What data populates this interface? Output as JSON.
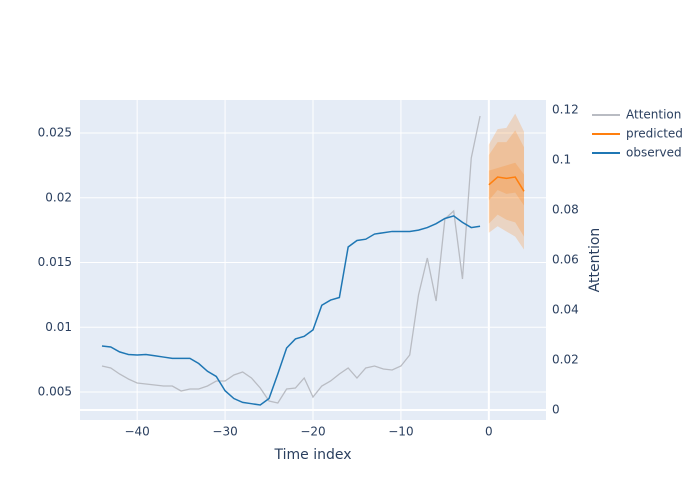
{
  "chart_data": {
    "type": "line",
    "x_label": "Time index",
    "y2_label": "Attention",
    "xlim": [
      -46.5,
      6.5
    ],
    "xticks": [
      {
        "value": -40,
        "label": "−40"
      },
      {
        "value": -30,
        "label": "−30"
      },
      {
        "value": -20,
        "label": "−20"
      },
      {
        "value": -10,
        "label": "−10"
      },
      0
    ],
    "ylim": [
      0.00284,
      0.02755
    ],
    "yticks": [
      0.005,
      0.01,
      0.015,
      0.02,
      0.025
    ],
    "y2lim": [
      -0.004,
      0.124
    ],
    "y2ticks": [
      0,
      0.02,
      0.04,
      0.06,
      0.08,
      0.1,
      0.12
    ],
    "grid": true,
    "zeroline": true,
    "legend": "outside-top-right",
    "series": [
      {
        "name": "Attention",
        "color": "#b9bcc3",
        "axis": "y2",
        "x": [
          -44,
          -43,
          -42,
          -41,
          -40,
          -39,
          -38,
          -37,
          -36,
          -35,
          -34,
          -33,
          -32,
          -31,
          -30,
          -29,
          -28,
          -27,
          -26,
          -25,
          -24,
          -23,
          -22,
          -21,
          -20,
          -19,
          -18,
          -17,
          -16,
          -15,
          -14,
          -13,
          -12,
          -11,
          -10,
          -9,
          -8,
          -7,
          -6,
          -5,
          -4,
          -3,
          -2,
          -1
        ],
        "values": [
          0.0176,
          0.0168,
          0.0144,
          0.0124,
          0.0108,
          0.0104,
          0.01,
          0.0096,
          0.0096,
          0.0076,
          0.0084,
          0.0084,
          0.0096,
          0.0116,
          0.0116,
          0.014,
          0.0152,
          0.0128,
          0.0088,
          0.0036,
          0.0028,
          0.0084,
          0.0088,
          0.0128,
          0.0052,
          0.0096,
          0.0116,
          0.0144,
          0.0168,
          0.0128,
          0.0168,
          0.0176,
          0.0164,
          0.016,
          0.0176,
          0.022,
          0.046,
          0.0608,
          0.0436,
          0.0764,
          0.0796,
          0.0524,
          0.1008,
          0.1176
        ]
      },
      {
        "name": "predicted",
        "color": "#ff7f0e",
        "x": [
          0,
          1,
          2,
          3,
          4
        ],
        "values": [
          0.021,
          0.0216,
          0.0215,
          0.0216,
          0.0205
        ],
        "intervals": [
          {
            "lower": [
              0.0173,
              0.0178,
              0.0174,
              0.017,
              0.016
            ],
            "upper": [
              0.0241,
              0.0253,
              0.0254,
              0.0265,
              0.0251
            ]
          },
          {
            "lower": [
              0.018,
              0.0187,
              0.0183,
              0.0181,
              0.017
            ],
            "upper": [
              0.0233,
              0.0243,
              0.0243,
              0.0252,
              0.0239
            ]
          },
          {
            "lower": [
              0.0198,
              0.0206,
              0.0203,
              0.0204,
              0.0194
            ],
            "upper": [
              0.0221,
              0.0223,
              0.0225,
              0.0227,
              0.0218
            ]
          }
        ]
      },
      {
        "name": "observed",
        "color": "#1f77b4",
        "x": [
          -44,
          -43,
          -42,
          -41,
          -40,
          -39,
          -38,
          -37,
          -36,
          -35,
          -34,
          -33,
          -32,
          -31,
          -30,
          -29,
          -28,
          -27,
          -26,
          -25,
          -24,
          -23,
          -22,
          -21,
          -20,
          -19,
          -18,
          -17,
          -16,
          -15,
          -14,
          -13,
          -12,
          -11,
          -10,
          -9,
          -8,
          -7,
          -6,
          -5,
          -4,
          -3,
          -2,
          -1
        ],
        "values": [
          0.00855,
          0.00848,
          0.0081,
          0.0079,
          0.00786,
          0.0079,
          0.0078,
          0.0077,
          0.0076,
          0.0076,
          0.0076,
          0.0072,
          0.0066,
          0.0062,
          0.0051,
          0.0045,
          0.0042,
          0.0041,
          0.004,
          0.0045,
          0.0064,
          0.0084,
          0.0091,
          0.0093,
          0.0098,
          0.0117,
          0.0121,
          0.0123,
          0.0162,
          0.0167,
          0.0168,
          0.0172,
          0.0173,
          0.0174,
          0.0174,
          0.0174,
          0.0175,
          0.0177,
          0.018,
          0.0184,
          0.0186,
          0.0181,
          0.0177,
          0.0178
        ]
      }
    ]
  }
}
